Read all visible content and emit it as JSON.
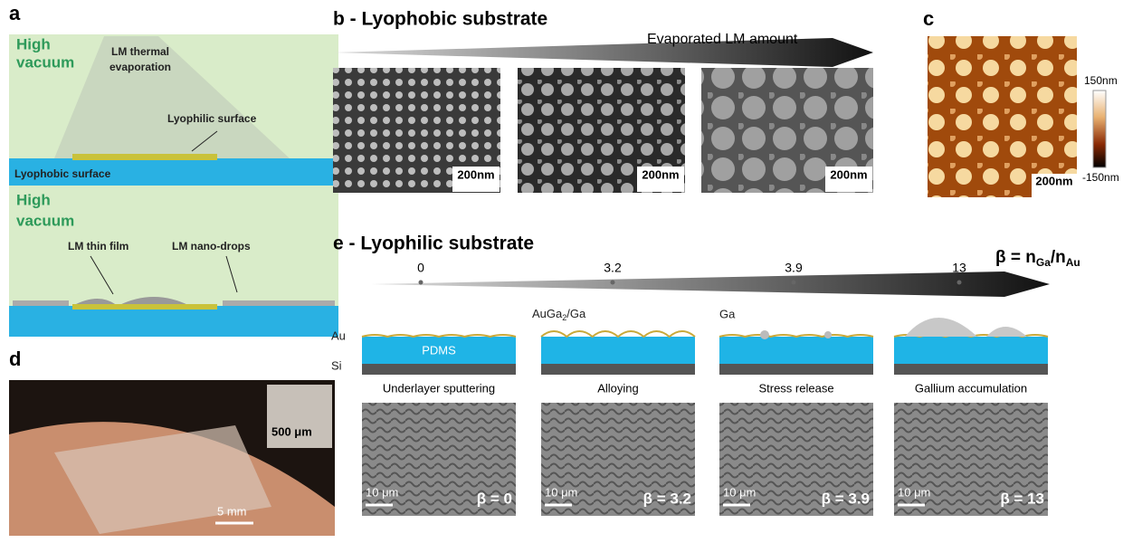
{
  "panel_a": {
    "label": "a",
    "vacuum_lines": [
      "High",
      "vacuum"
    ],
    "source_lines": [
      "LM thermal",
      "evaporation"
    ],
    "lyophilic": "Lyophilic surface",
    "lyophobic": "Lyophobic surface",
    "thin_film": "LM thin film",
    "nano_drops": "LM nano-drops"
  },
  "panel_b": {
    "title": "b - Lyophobic substrate",
    "arrow_label": "Evaporated LM amount",
    "scale_bars": [
      "200nm",
      "200nm",
      "200nm"
    ]
  },
  "panel_c": {
    "label": "c",
    "scale_bar": "200nm",
    "colorbar_max": "150nm",
    "colorbar_min": "-150nm"
  },
  "panel_d": {
    "label": "d",
    "inset_scale": "500 μm",
    "scale": "5 mm"
  },
  "panel_e": {
    "title": "e - Lyophilic substrate",
    "beta_ticks": [
      "0",
      "3.2",
      "3.9",
      "13"
    ],
    "beta_definition": [
      "β = n",
      "Ga",
      "/n",
      "Au"
    ],
    "au_label": "Au",
    "si_label": "Si",
    "pdms_label": "PDMS",
    "alloy_label": [
      "AuGa",
      "2",
      "/Ga"
    ],
    "ga_label": "Ga",
    "steps": [
      "Underlayer sputtering",
      "Alloying",
      "Stress release",
      "Gallium accumulation"
    ],
    "image_scale": [
      "10 μm",
      "10 μm",
      "10 μm",
      "10 μm"
    ],
    "image_beta": [
      "β = 0",
      "β = 3.2",
      "β = 3.9",
      "β = 13"
    ]
  }
}
